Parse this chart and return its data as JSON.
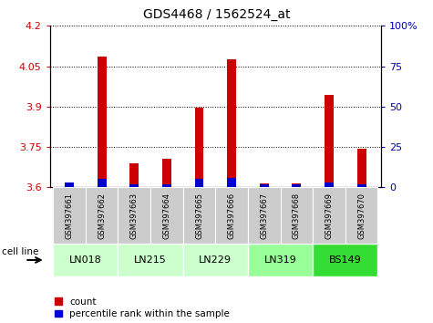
{
  "title": "GDS4468 / 1562524_at",
  "samples": [
    "GSM397661",
    "GSM397662",
    "GSM397663",
    "GSM397664",
    "GSM397665",
    "GSM397666",
    "GSM397667",
    "GSM397668",
    "GSM397669",
    "GSM397670"
  ],
  "cell_lines": [
    {
      "name": "LN018",
      "samples": [
        0,
        1
      ],
      "color": "#ccffcc"
    },
    {
      "name": "LN215",
      "samples": [
        2,
        3
      ],
      "color": "#ccffcc"
    },
    {
      "name": "LN229",
      "samples": [
        4,
        5
      ],
      "color": "#ccffcc"
    },
    {
      "name": "LN319",
      "samples": [
        6,
        7
      ],
      "color": "#99ff99"
    },
    {
      "name": "BS149",
      "samples": [
        8,
        9
      ],
      "color": "#33dd33"
    }
  ],
  "count_values": [
    3.615,
    4.085,
    3.69,
    3.705,
    3.895,
    4.075,
    3.615,
    3.615,
    3.945,
    3.745
  ],
  "percentile_values": [
    3,
    5,
    2,
    2,
    5,
    6,
    2,
    2,
    3,
    2
  ],
  "ylim_left": [
    3.6,
    4.2
  ],
  "ylim_right": [
    0,
    100
  ],
  "yticks_left": [
    3.6,
    3.75,
    3.9,
    4.05,
    4.2
  ],
  "yticks_right": [
    0,
    25,
    50,
    75,
    100
  ],
  "ytick_labels_left": [
    "3.6",
    "3.75",
    "3.9",
    "4.05",
    "4.2"
  ],
  "ytick_labels_right": [
    "0",
    "25",
    "50",
    "75",
    "100%"
  ],
  "count_color": "#cc0000",
  "percentile_color": "#0000cc",
  "left_tick_color": "#cc0000",
  "right_tick_color": "#0000bb",
  "sample_label_bg": "#cccccc",
  "cell_line_label": "cell line"
}
